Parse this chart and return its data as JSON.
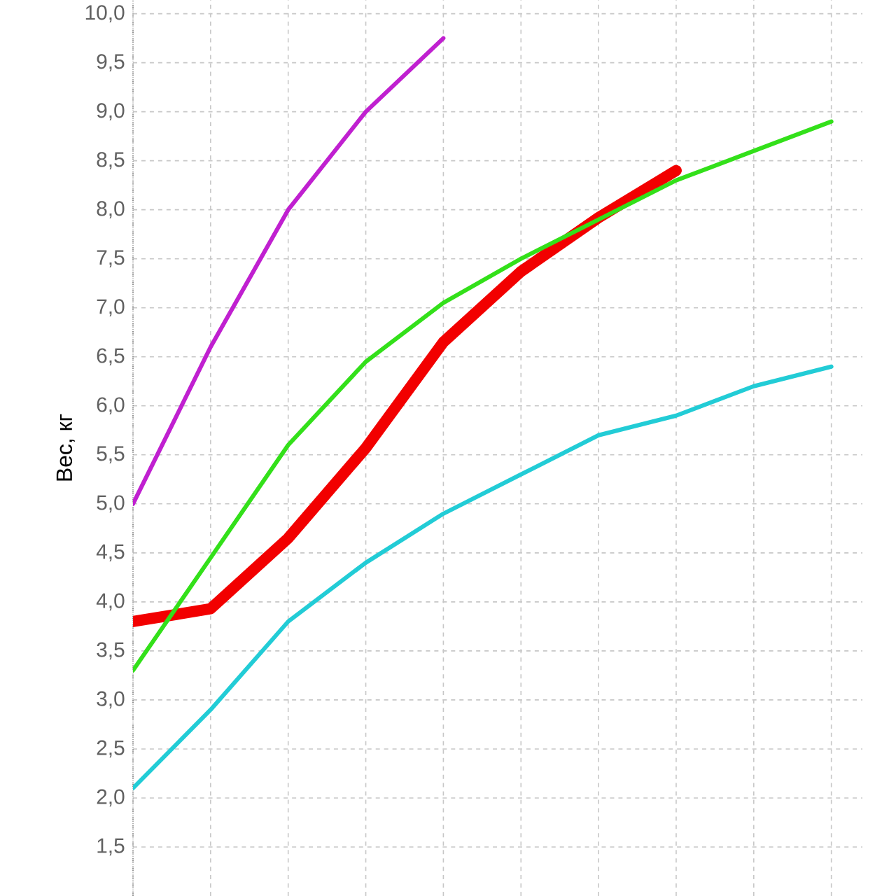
{
  "chart_data": {
    "type": "line",
    "ylabel": "Вес, кг",
    "categories": [
      null,
      null,
      null,
      null,
      null,
      null,
      null,
      null,
      null,
      null
    ],
    "ylim": [
      1.0,
      10.14
    ],
    "yticks": [
      {
        "value": 1.5,
        "label": "1,5"
      },
      {
        "value": 2.0,
        "label": "2,0"
      },
      {
        "value": 2.5,
        "label": "2,5"
      },
      {
        "value": 3.0,
        "label": "3,0"
      },
      {
        "value": 3.5,
        "label": "3,5"
      },
      {
        "value": 4.0,
        "label": "4,0"
      },
      {
        "value": 4.5,
        "label": "4,5"
      },
      {
        "value": 5.0,
        "label": "5,0"
      },
      {
        "value": 5.5,
        "label": "5,5"
      },
      {
        "value": 6.0,
        "label": "6,0"
      },
      {
        "value": 6.5,
        "label": "6,5"
      },
      {
        "value": 7.0,
        "label": "7,0"
      },
      {
        "value": 7.5,
        "label": "7,5"
      },
      {
        "value": 8.0,
        "label": "8,0"
      },
      {
        "value": 8.5,
        "label": "8,5"
      },
      {
        "value": 9.0,
        "label": "9,0"
      },
      {
        "value": 9.5,
        "label": "9,5"
      },
      {
        "value": 10.0,
        "label": "10,0"
      }
    ],
    "grid": true,
    "tick_labels": "y",
    "series": [
      {
        "color": "#c020d0",
        "values": [
          5.0,
          6.6,
          8.0,
          9.0,
          9.75,
          null,
          null,
          null,
          null,
          null
        ]
      },
      {
        "color": "#22ccd6",
        "values": [
          2.1,
          2.9,
          3.8,
          4.4,
          4.9,
          5.3,
          5.7,
          5.9,
          6.2,
          6.4
        ]
      },
      {
        "color": "#f20000",
        "values": [
          3.8,
          3.93,
          4.65,
          5.57,
          6.65,
          7.37,
          7.92,
          8.4,
          null,
          null
        ]
      },
      {
        "color": "#33e01a",
        "values": [
          3.3,
          4.45,
          5.6,
          6.45,
          7.05,
          7.5,
          7.9,
          8.3,
          8.6,
          8.9
        ]
      }
    ]
  }
}
